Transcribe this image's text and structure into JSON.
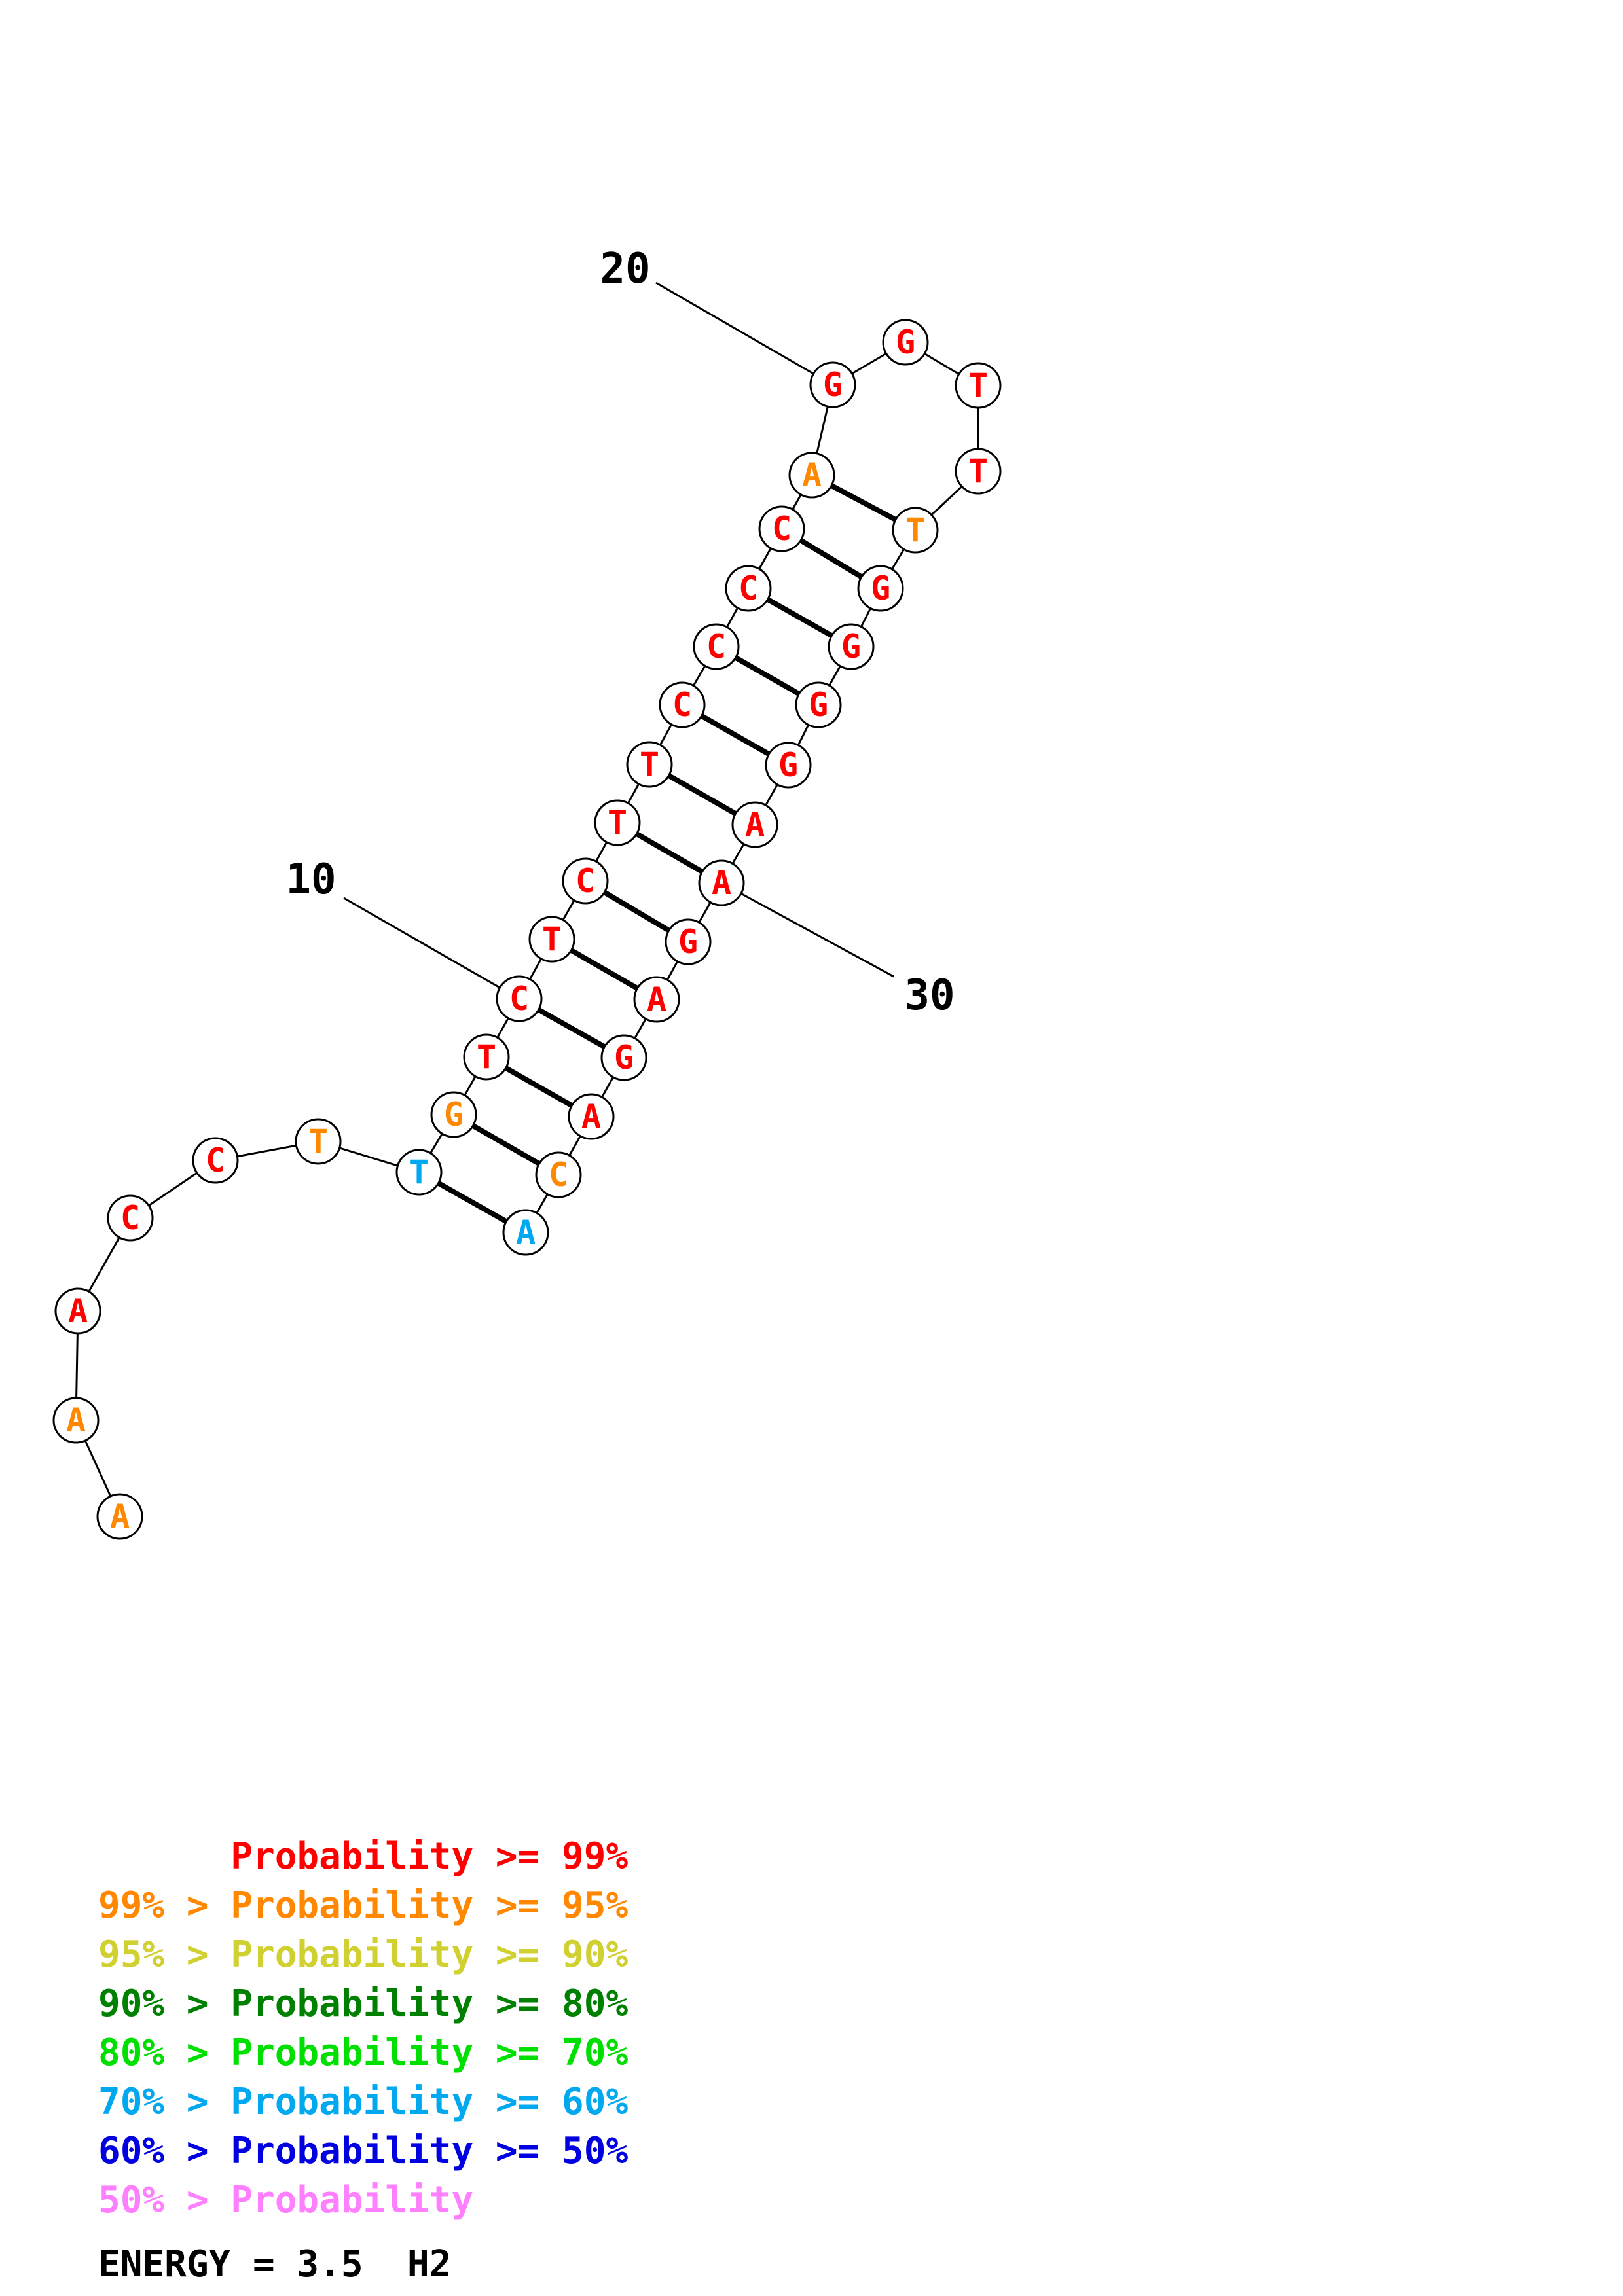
{
  "diagram": {
    "type": "rna-secondary-structure",
    "sequence": [
      {
        "base": "A",
        "color": "#ff8800"
      },
      {
        "base": "A",
        "color": "#ff8800"
      },
      {
        "base": "A",
        "color": "#ff0000"
      },
      {
        "base": "C",
        "color": "#ff0000"
      },
      {
        "base": "C",
        "color": "#ff0000"
      },
      {
        "base": "T",
        "color": "#ff8800"
      },
      {
        "base": "T",
        "color": "#00a8f0"
      },
      {
        "base": "G",
        "color": "#ff8800"
      },
      {
        "base": "T",
        "color": "#ff0000"
      },
      {
        "base": "C",
        "color": "#ff0000"
      },
      {
        "base": "T",
        "color": "#ff0000"
      },
      {
        "base": "C",
        "color": "#ff0000"
      },
      {
        "base": "T",
        "color": "#ff0000"
      },
      {
        "base": "T",
        "color": "#ff0000"
      },
      {
        "base": "C",
        "color": "#ff0000"
      },
      {
        "base": "C",
        "color": "#ff0000"
      },
      {
        "base": "C",
        "color": "#ff0000"
      },
      {
        "base": "C",
        "color": "#ff0000"
      },
      {
        "base": "A",
        "color": "#ff8800"
      },
      {
        "base": "G",
        "color": "#ff0000"
      },
      {
        "base": "G",
        "color": "#ff0000"
      },
      {
        "base": "T",
        "color": "#ff0000"
      },
      {
        "base": "T",
        "color": "#ff0000"
      },
      {
        "base": "T",
        "color": "#ff8800"
      },
      {
        "base": "G",
        "color": "#ff0000"
      },
      {
        "base": "G",
        "color": "#ff0000"
      },
      {
        "base": "G",
        "color": "#ff0000"
      },
      {
        "base": "G",
        "color": "#ff0000"
      },
      {
        "base": "A",
        "color": "#ff0000"
      },
      {
        "base": "A",
        "color": "#ff0000"
      },
      {
        "base": "G",
        "color": "#ff0000"
      },
      {
        "base": "A",
        "color": "#ff0000"
      },
      {
        "base": "G",
        "color": "#ff0000"
      },
      {
        "base": "A",
        "color": "#ff0000"
      },
      {
        "base": "C",
        "color": "#ff8800"
      },
      {
        "base": "A",
        "color": "#00a8f0"
      }
    ],
    "pairs": [
      [
        7,
        36
      ],
      [
        8,
        35
      ],
      [
        9,
        34
      ],
      [
        10,
        33
      ],
      [
        11,
        32
      ],
      [
        12,
        31
      ],
      [
        13,
        30
      ],
      [
        14,
        29
      ],
      [
        15,
        28
      ],
      [
        16,
        27
      ],
      [
        17,
        26
      ],
      [
        18,
        25
      ],
      [
        19,
        24
      ]
    ],
    "index_labels": [
      {
        "text": "10",
        "position": 10
      },
      {
        "text": "20",
        "position": 20
      },
      {
        "text": "30",
        "position": 30
      }
    ]
  },
  "legend": [
    {
      "text": "      Probability >= 99%",
      "color": "#ff0000"
    },
    {
      "text": "99% > Probability >= 95%",
      "color": "#ff8800"
    },
    {
      "text": "95% > Probability >= 90%",
      "color": "#d0d030"
    },
    {
      "text": "90% > Probability >= 80%",
      "color": "#008000"
    },
    {
      "text": "80% > Probability >= 70%",
      "color": "#00e000"
    },
    {
      "text": "70% > Probability >= 60%",
      "color": "#00a8f0"
    },
    {
      "text": "60% > Probability >= 50%",
      "color": "#0000e0"
    },
    {
      "text": "50% > Probability",
      "color": "#ff80ff"
    }
  ],
  "energy": "ENERGY = 3.5  H2"
}
